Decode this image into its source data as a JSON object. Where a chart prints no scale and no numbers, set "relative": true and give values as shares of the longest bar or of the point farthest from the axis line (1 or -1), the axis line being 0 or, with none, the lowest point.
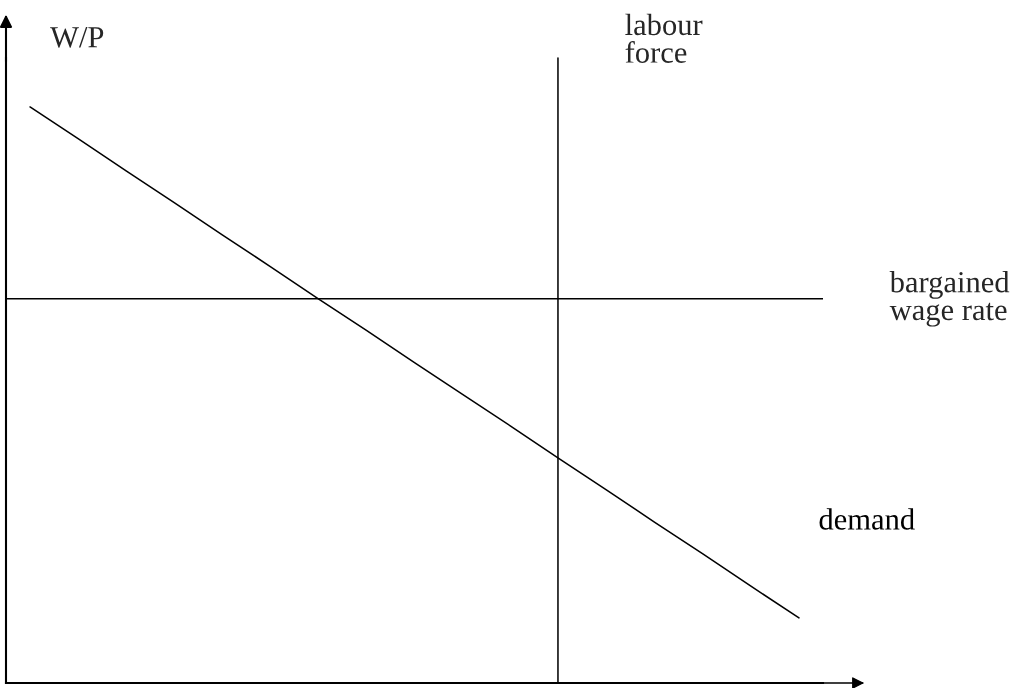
{
  "chart_data": {
    "type": "line",
    "ylabel": "W/P",
    "relative": true,
    "categories": [
      null,
      null,
      null,
      null,
      null,
      null,
      null,
      null,
      null,
      null,
      null,
      null,
      null,
      null,
      null,
      null,
      null
    ],
    "series": [
      {
        "name": "demand",
        "color": "#000000",
        "values": [
          1,
          0.945,
          0.889,
          0.834,
          0.778,
          0.723,
          0.667,
          0.612,
          0.556,
          0.501,
          0.446,
          0.39,
          0.335,
          0.279,
          0.224,
          0.168,
          0.113
        ]
      }
    ],
    "ref_lines": [
      {
        "axis": "y",
        "value": 0.667,
        "label": "bargained\nwage rate",
        "color": "#000000"
      }
    ],
    "annotations": [
      "labour\nforce"
    ]
  }
}
